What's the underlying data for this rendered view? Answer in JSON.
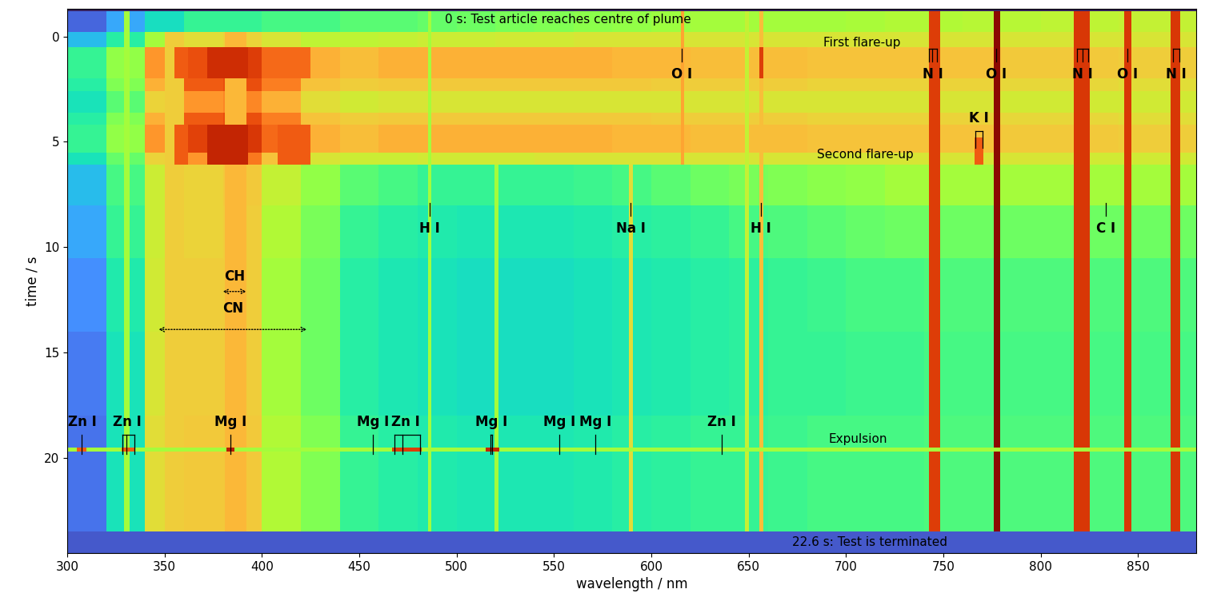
{
  "chart_data": {
    "type": "heatmap",
    "xlabel": "wavelength / nm",
    "ylabel": "time / s",
    "xlim": [
      300,
      880
    ],
    "ylim": [
      24.5,
      -1.3
    ],
    "xticks": [
      300,
      350,
      400,
      450,
      500,
      550,
      600,
      650,
      700,
      750,
      800,
      850
    ],
    "yticks": [
      0,
      5,
      10,
      15,
      20
    ],
    "cell_range": [
      0,
      1
    ],
    "wavelength_edges": [
      300,
      320,
      340,
      360,
      380,
      400,
      420,
      440,
      460,
      480,
      500,
      520,
      540,
      560,
      580,
      600,
      620,
      640,
      660,
      680,
      700,
      720,
      740,
      760,
      780,
      800,
      820,
      840,
      860,
      880
    ],
    "time_edges": [
      -1.3,
      -1.2,
      -0.2,
      0.5,
      1.2,
      2.0,
      2.6,
      3.6,
      4.2,
      5.5,
      6.1,
      8.0,
      10.5,
      14.0,
      18.0,
      23.5,
      24.5
    ],
    "cells": [
      [
        0.02,
        0.02,
        0.02,
        0.02,
        0.02,
        0.02,
        0.02,
        0.02,
        0.02,
        0.02,
        0.02,
        0.02,
        0.02,
        0.02,
        0.02,
        0.02,
        0.02,
        0.02,
        0.02,
        0.02,
        0.02,
        0.02,
        0.02,
        0.02,
        0.02,
        0.02,
        0.02,
        0.02,
        0.02
      ],
      [
        0.12,
        0.22,
        0.32,
        0.38,
        0.38,
        0.4,
        0.4,
        0.42,
        0.42,
        0.43,
        0.44,
        0.45,
        0.46,
        0.47,
        0.48,
        0.49,
        0.5,
        0.5,
        0.5,
        0.5,
        0.51,
        0.52,
        0.52,
        0.53,
        0.53,
        0.54,
        0.54,
        0.55,
        0.55
      ],
      [
        0.25,
        0.36,
        0.5,
        0.6,
        0.62,
        0.58,
        0.54,
        0.54,
        0.55,
        0.56,
        0.56,
        0.57,
        0.57,
        0.58,
        0.58,
        0.58,
        0.58,
        0.58,
        0.58,
        0.58,
        0.58,
        0.58,
        0.58,
        0.58,
        0.58,
        0.58,
        0.58,
        0.58,
        0.58
      ],
      [
        0.38,
        0.48,
        0.72,
        0.82,
        0.85,
        0.78,
        0.68,
        0.66,
        0.68,
        0.68,
        0.68,
        0.68,
        0.68,
        0.68,
        0.67,
        0.67,
        0.66,
        0.66,
        0.66,
        0.65,
        0.65,
        0.65,
        0.65,
        0.65,
        0.64,
        0.64,
        0.64,
        0.63,
        0.63
      ],
      [
        0.38,
        0.48,
        0.72,
        0.82,
        0.85,
        0.78,
        0.68,
        0.66,
        0.68,
        0.68,
        0.68,
        0.68,
        0.68,
        0.68,
        0.67,
        0.67,
        0.66,
        0.66,
        0.66,
        0.65,
        0.65,
        0.65,
        0.65,
        0.65,
        0.64,
        0.64,
        0.64,
        0.63,
        0.63
      ],
      [
        0.36,
        0.46,
        0.68,
        0.8,
        0.82,
        0.75,
        0.65,
        0.63,
        0.64,
        0.64,
        0.64,
        0.64,
        0.64,
        0.64,
        0.64,
        0.63,
        0.63,
        0.63,
        0.63,
        0.62,
        0.62,
        0.62,
        0.62,
        0.62,
        0.61,
        0.61,
        0.61,
        0.6,
        0.6
      ],
      [
        0.33,
        0.42,
        0.62,
        0.72,
        0.74,
        0.68,
        0.6,
        0.57,
        0.58,
        0.58,
        0.58,
        0.58,
        0.58,
        0.58,
        0.58,
        0.58,
        0.58,
        0.58,
        0.58,
        0.58,
        0.58,
        0.58,
        0.58,
        0.58,
        0.57,
        0.57,
        0.57,
        0.57,
        0.57
      ],
      [
        0.36,
        0.46,
        0.68,
        0.8,
        0.82,
        0.75,
        0.65,
        0.63,
        0.64,
        0.64,
        0.64,
        0.64,
        0.64,
        0.64,
        0.64,
        0.63,
        0.63,
        0.63,
        0.63,
        0.62,
        0.62,
        0.62,
        0.62,
        0.62,
        0.61,
        0.61,
        0.61,
        0.6,
        0.6
      ],
      [
        0.38,
        0.48,
        0.72,
        0.84,
        0.86,
        0.78,
        0.68,
        0.66,
        0.68,
        0.68,
        0.68,
        0.68,
        0.68,
        0.68,
        0.67,
        0.67,
        0.66,
        0.66,
        0.66,
        0.65,
        0.65,
        0.65,
        0.65,
        0.65,
        0.64,
        0.64,
        0.64,
        0.63,
        0.63
      ],
      [
        0.33,
        0.43,
        0.62,
        0.72,
        0.76,
        0.65,
        0.58,
        0.56,
        0.56,
        0.57,
        0.57,
        0.57,
        0.58,
        0.58,
        0.58,
        0.58,
        0.58,
        0.58,
        0.58,
        0.58,
        0.58,
        0.58,
        0.58,
        0.58,
        0.58,
        0.58,
        0.57,
        0.57,
        0.57
      ],
      [
        0.25,
        0.4,
        0.56,
        0.62,
        0.64,
        0.55,
        0.48,
        0.42,
        0.4,
        0.38,
        0.38,
        0.38,
        0.38,
        0.39,
        0.4,
        0.42,
        0.44,
        0.45,
        0.46,
        0.47,
        0.48,
        0.5,
        0.5,
        0.5,
        0.5,
        0.5,
        0.5,
        0.5,
        0.5
      ],
      [
        0.22,
        0.38,
        0.56,
        0.62,
        0.63,
        0.52,
        0.45,
        0.38,
        0.36,
        0.35,
        0.34,
        0.34,
        0.34,
        0.35,
        0.36,
        0.37,
        0.38,
        0.4,
        0.41,
        0.42,
        0.43,
        0.44,
        0.44,
        0.44,
        0.44,
        0.44,
        0.44,
        0.44,
        0.44
      ],
      [
        0.18,
        0.35,
        0.57,
        0.63,
        0.63,
        0.5,
        0.44,
        0.36,
        0.34,
        0.33,
        0.32,
        0.32,
        0.32,
        0.33,
        0.34,
        0.35,
        0.36,
        0.37,
        0.38,
        0.39,
        0.4,
        0.4,
        0.41,
        0.41,
        0.41,
        0.41,
        0.41,
        0.41,
        0.41
      ],
      [
        0.15,
        0.33,
        0.58,
        0.63,
        0.63,
        0.5,
        0.44,
        0.36,
        0.34,
        0.33,
        0.32,
        0.32,
        0.32,
        0.33,
        0.34,
        0.35,
        0.36,
        0.37,
        0.38,
        0.38,
        0.39,
        0.39,
        0.4,
        0.4,
        0.4,
        0.4,
        0.4,
        0.4,
        0.4
      ],
      [
        0.14,
        0.33,
        0.6,
        0.64,
        0.64,
        0.52,
        0.46,
        0.38,
        0.36,
        0.35,
        0.34,
        0.34,
        0.34,
        0.35,
        0.36,
        0.37,
        0.38,
        0.38,
        0.39,
        0.4,
        0.4,
        0.4,
        0.41,
        0.41,
        0.41,
        0.41,
        0.41,
        0.41,
        0.41
      ],
      [
        0.1,
        0.1,
        0.1,
        0.1,
        0.1,
        0.1,
        0.1,
        0.1,
        0.1,
        0.1,
        0.1,
        0.1,
        0.1,
        0.1,
        0.1,
        0.1,
        0.1,
        0.1,
        0.1,
        0.1,
        0.1,
        0.1,
        0.1,
        0.1,
        0.1,
        0.1,
        0.1,
        0.1,
        0.1
      ]
    ],
    "features": [
      {
        "wavelength": [
          350,
          360
        ],
        "time": [
          -0.2,
          23.5
        ],
        "value": 0.63
      },
      {
        "wavelength": [
          381,
          392
        ],
        "time": [
          -0.2,
          23.5
        ],
        "value": 0.67
      },
      {
        "wavelength": [
          329,
          332
        ],
        "time": [
          -1.2,
          23.5
        ],
        "value": 0.5
      },
      {
        "wavelength": [
          485.5,
          487
        ],
        "time": [
          -1.2,
          23.5
        ],
        "value": 0.5
      },
      {
        "wavelength": [
          519.5,
          521.5
        ],
        "time": [
          6.1,
          23.5
        ],
        "value": 0.5
      },
      {
        "wavelength": [
          588.5,
          590.5
        ],
        "time": [
          6.1,
          23.5
        ],
        "value": 0.6
      },
      {
        "wavelength": [
          615,
          617
        ],
        "time": [
          -1.2,
          6.1
        ],
        "value": 0.7
      },
      {
        "wavelength": [
          648,
          650
        ],
        "time": [
          -1.2,
          23.5
        ],
        "value": 0.55
      },
      {
        "wavelength": [
          655.5,
          657.5
        ],
        "time": [
          -1.2,
          23.5
        ],
        "value": 0.66
      },
      {
        "wavelength": [
          655.5,
          657.5
        ],
        "time": [
          0.5,
          2.0
        ],
        "value": 0.85
      },
      {
        "wavelength": [
          742.5,
          748.5
        ],
        "time": [
          -1.2,
          23.5
        ],
        "value": 0.85
      },
      {
        "wavelength": [
          776,
          779
        ],
        "time": [
          -1.2,
          23.5
        ],
        "value": 0.98
      },
      {
        "wavelength": [
          817,
          825
        ],
        "time": [
          -1.2,
          23.5
        ],
        "value": 0.86
      },
      {
        "wavelength": [
          843,
          846.5
        ],
        "time": [
          -1.2,
          23.5
        ],
        "value": 0.86
      },
      {
        "wavelength": [
          866.5,
          871.5
        ],
        "time": [
          -1.2,
          23.5
        ],
        "value": 0.86
      },
      {
        "wavelength": [
          372,
          393
        ],
        "time": [
          0.5,
          2.0
        ],
        "value": 0.88
      },
      {
        "wavelength": [
          372,
          393
        ],
        "time": [
          4.2,
          6.1
        ],
        "value": 0.9
      },
      {
        "wavelength": [
          355,
          362
        ],
        "time": [
          0.5,
          2.0
        ],
        "value": 0.8
      },
      {
        "wavelength": [
          355,
          362
        ],
        "time": [
          4.2,
          6.1
        ],
        "value": 0.8
      },
      {
        "wavelength": [
          408,
          425
        ],
        "time": [
          0.5,
          2.0
        ],
        "value": 0.78
      },
      {
        "wavelength": [
          408,
          425
        ],
        "time": [
          4.2,
          6.1
        ],
        "value": 0.8
      },
      {
        "wavelength": [
          766,
          770.5
        ],
        "time": [
          4.8,
          6.1
        ],
        "value": 0.8
      },
      {
        "wavelength": [
          300,
          880
        ],
        "time": [
          19.5,
          19.7
        ],
        "value": 0.5
      },
      {
        "wavelength": [
          305,
          310
        ],
        "time": [
          19.5,
          19.7
        ],
        "value": 0.8
      },
      {
        "wavelength": [
          328,
          335
        ],
        "time": [
          19.5,
          19.7
        ],
        "value": 0.8
      },
      {
        "wavelength": [
          382,
          386
        ],
        "time": [
          19.5,
          19.7
        ],
        "value": 0.92
      },
      {
        "wavelength": [
          467,
          482
        ],
        "time": [
          19.5,
          19.7
        ],
        "value": 0.85
      },
      {
        "wavelength": [
          515,
          522
        ],
        "time": [
          19.5,
          19.7
        ],
        "value": 0.9
      }
    ],
    "line_labels": [
      {
        "label": "O I",
        "wavelengths": [
          615.8
        ],
        "time": 1.8,
        "marker_time": [
          0.6,
          1.2
        ]
      },
      {
        "label": "N I",
        "wavelengths": [
          742.4,
          744.2,
          746.8
        ],
        "time": 1.8,
        "marker_time": [
          0.6,
          1.2
        ]
      },
      {
        "label": "O I",
        "wavelengths": [
          777.2
        ],
        "time": 1.8,
        "marker_time": [
          0.6,
          1.2
        ]
      },
      {
        "label": "N I",
        "wavelengths": [
          818.5,
          821.6,
          824.2
        ],
        "time": 1.8,
        "marker_time": [
          0.6,
          1.2
        ]
      },
      {
        "label": "O I",
        "wavelengths": [
          844.6
        ],
        "time": 1.8,
        "marker_time": [
          0.6,
          1.2
        ]
      },
      {
        "label": "N I",
        "wavelengths": [
          868.0,
          871.2
        ],
        "time": 1.8,
        "marker_time": [
          0.6,
          1.2
        ]
      },
      {
        "label": "K I",
        "wavelengths": [
          766.5,
          769.9
        ],
        "time": 3.9,
        "marker_time": [
          4.5,
          5.3
        ]
      },
      {
        "label": "H I",
        "wavelengths": [
          486.1
        ],
        "time": 9.1,
        "marker_time": [
          7.9,
          8.5
        ]
      },
      {
        "label": "Na I",
        "wavelengths": [
          589.3
        ],
        "time": 9.1,
        "marker_time": [
          7.9,
          8.5
        ]
      },
      {
        "label": "H I",
        "wavelengths": [
          656.3
        ],
        "time": 9.1,
        "marker_time": [
          7.9,
          8.5
        ]
      },
      {
        "label": "C I",
        "wavelengths": [
          833.5
        ],
        "time": 9.1,
        "marker_time": [
          7.9,
          8.5
        ]
      },
      {
        "label": "Zn I",
        "wavelengths": [
          307.6
        ],
        "time": 18.3,
        "marker_time": [
          18.9,
          19.8
        ]
      },
      {
        "label": "Zn I",
        "wavelengths": [
          328.2,
          330.3,
          334.5
        ],
        "time": 18.3,
        "marker_time": [
          18.9,
          19.8
        ]
      },
      {
        "label": "Mg I",
        "wavelengths": [
          383.8
        ],
        "time": 18.3,
        "marker_time": [
          18.9,
          19.8
        ]
      },
      {
        "label": "Mg I",
        "wavelengths": [
          457.1
        ],
        "time": 18.3,
        "marker_time": [
          18.9,
          19.8
        ]
      },
      {
        "label": "Zn I",
        "wavelengths": [
          468.0,
          472.2,
          481.1
        ],
        "time": 18.3,
        "marker_time": [
          18.9,
          19.8
        ]
      },
      {
        "label": "Mg I",
        "wavelengths": [
          517.3,
          518.4
        ],
        "time": 18.3,
        "marker_time": [
          18.9,
          19.8
        ]
      },
      {
        "label": "Mg I",
        "wavelengths": [
          552.8
        ],
        "time": 18.3,
        "marker_time": [
          18.9,
          19.8
        ]
      },
      {
        "label": "Mg I",
        "wavelengths": [
          571.1
        ],
        "time": 18.3,
        "marker_time": [
          18.9,
          19.8
        ]
      },
      {
        "label": "Zn I",
        "wavelengths": [
          636.2
        ],
        "time": 18.3,
        "marker_time": [
          18.9,
          19.8
        ]
      }
    ],
    "arrows": [
      {
        "label": "CH",
        "wavelengths": [
          380,
          392
        ],
        "time": 12.1,
        "label_time": 11.4
      },
      {
        "label": "CN",
        "wavelengths": [
          347,
          423
        ],
        "time": 13.9,
        "label_time": 12.9
      }
    ],
    "annotations": [
      {
        "text": "0 s: Test article reaches centre of plume",
        "wavelength": 557,
        "time": -0.8
      },
      {
        "text": "First flare-up",
        "wavelength": 708,
        "time": 0.3
      },
      {
        "text": "Second flare-up",
        "wavelength": 710,
        "time": 5.6
      },
      {
        "text": "Expulsion",
        "wavelength": 706,
        "time": 19.1
      },
      {
        "text": "22.6 s: Test is terminated",
        "wavelength": 712,
        "time": 24.0
      }
    ]
  }
}
